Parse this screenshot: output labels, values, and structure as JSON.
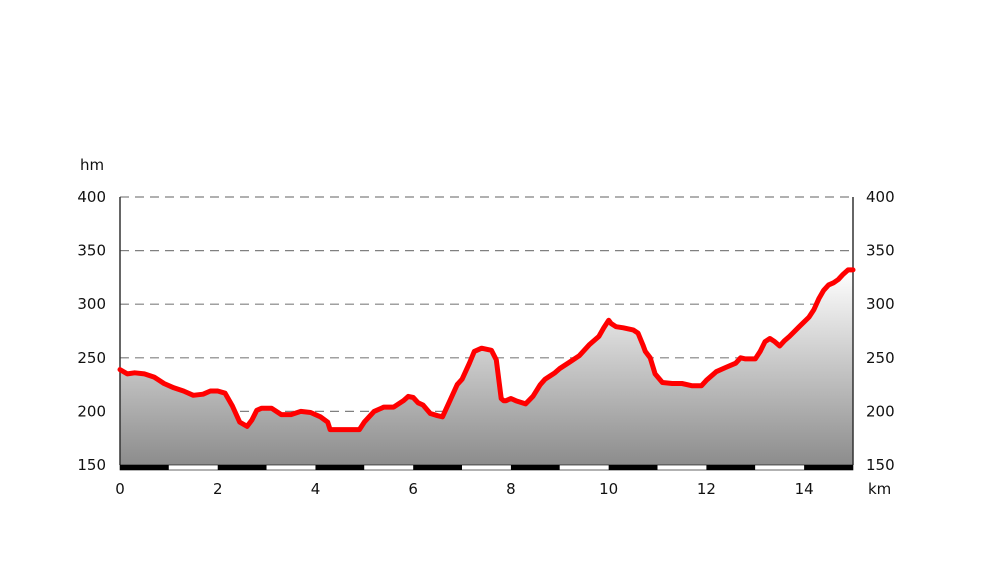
{
  "chart_data": {
    "type": "area",
    "x_unit": "km",
    "y_unit": "hm",
    "xlim": [
      0,
      15
    ],
    "ylim": [
      150,
      400
    ],
    "x_ticks": [
      "0",
      "2",
      "4",
      "6",
      "8",
      "10",
      "12",
      "14"
    ],
    "y_ticks": [
      "150",
      "200",
      "250",
      "300",
      "350",
      "400"
    ],
    "grid": true,
    "line_color": "#ff0000",
    "fill_gradient": [
      "#ffffff",
      "#8c8c8c"
    ],
    "x": [
      0,
      0.15,
      0.3,
      0.5,
      0.7,
      0.9,
      1.1,
      1.3,
      1.5,
      1.7,
      1.85,
      2.0,
      2.15,
      2.3,
      2.45,
      2.6,
      2.7,
      2.8,
      2.9,
      3.1,
      3.3,
      3.5,
      3.7,
      3.9,
      4.1,
      4.25,
      4.3,
      4.5,
      4.7,
      4.9,
      5.0,
      5.2,
      5.4,
      5.6,
      5.8,
      5.9,
      6.0,
      6.1,
      6.2,
      6.35,
      6.5,
      6.6,
      6.75,
      6.9,
      7.0,
      7.15,
      7.25,
      7.4,
      7.6,
      7.7,
      7.8,
      7.85,
      7.9,
      8.0,
      8.1,
      8.3,
      8.45,
      8.6,
      8.7,
      8.8,
      8.9,
      9.0,
      9.2,
      9.4,
      9.6,
      9.8,
      9.9,
      10.0,
      10.05,
      10.15,
      10.3,
      10.5,
      10.6,
      10.7,
      10.75,
      10.85,
      10.95,
      11.1,
      11.3,
      11.5,
      11.7,
      11.9,
      12.0,
      12.2,
      12.4,
      12.6,
      12.7,
      12.8,
      13.0,
      13.1,
      13.2,
      13.3,
      13.4,
      13.5,
      13.6,
      13.7,
      13.9,
      14.1,
      14.2,
      14.3,
      14.4,
      14.5,
      14.6,
      14.7,
      14.8,
      14.9,
      15.0
    ],
    "y": [
      239,
      235,
      236,
      235,
      232,
      226,
      222,
      219,
      215,
      216,
      219,
      219,
      217,
      205,
      190,
      186,
      192,
      201,
      203,
      203,
      197,
      197,
      200,
      199,
      195,
      190,
      183,
      183,
      183,
      183,
      190,
      200,
      204,
      204,
      210,
      214,
      213,
      208,
      206,
      198,
      196,
      195,
      210,
      225,
      230,
      245,
      256,
      259,
      257,
      248,
      212,
      210,
      210,
      212,
      210,
      207,
      214,
      225,
      230,
      233,
      236,
      240,
      246,
      252,
      262,
      270,
      278,
      285,
      282,
      279,
      278,
      276,
      273,
      262,
      256,
      250,
      235,
      227,
      226,
      226,
      224,
      224,
      229,
      237,
      241,
      245,
      250,
      249,
      249,
      256,
      265,
      268,
      265,
      261,
      266,
      270,
      279,
      288,
      295,
      305,
      313,
      318,
      320,
      323,
      328,
      332,
      332
    ]
  }
}
